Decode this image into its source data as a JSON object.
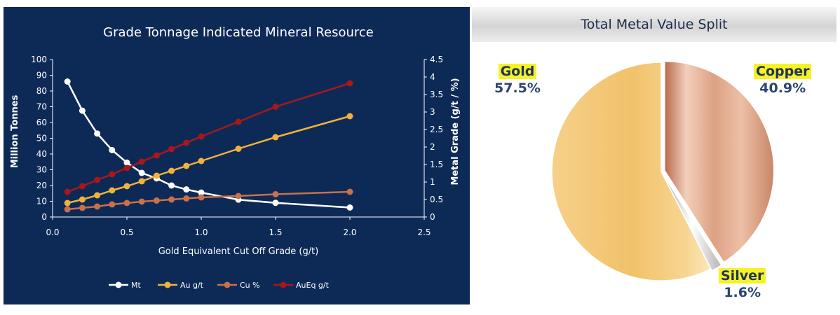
{
  "chart_data": [
    {
      "type": "line",
      "title": "Grade Tonnage Indicated Mineral Resource",
      "xlabel": "Gold Equivalent Cut Off Grade (g/t)",
      "ylabel": "Million Tonnes",
      "y2label": "Metal Grade (g/t / %)",
      "xlim": [
        0,
        2.5
      ],
      "ylim": [
        0,
        100
      ],
      "y2lim": [
        0,
        4.5
      ],
      "x_ticks": [
        "0.0",
        "0.5",
        "1.0",
        "1.5",
        "2.0",
        "2.5"
      ],
      "y_ticks": [
        "0",
        "10",
        "20",
        "30",
        "40",
        "50",
        "60",
        "70",
        "80",
        "90",
        "100"
      ],
      "y2_ticks": [
        "0",
        "0.5",
        "1",
        "1.5",
        "2",
        "2.5",
        "3",
        "3.5",
        "4",
        "4.5"
      ],
      "grid": false,
      "legend_position": "bottom",
      "x": [
        0.1,
        0.2,
        0.3,
        0.4,
        0.5,
        0.6,
        0.7,
        0.8,
        0.9,
        1.0,
        1.25,
        1.5,
        2.0
      ],
      "series": [
        {
          "name": "Mt",
          "axis": "left",
          "color": "#ffffff",
          "values": [
            86,
            67.5,
            53,
            42.5,
            34.5,
            28,
            24.5,
            20,
            17.5,
            15.5,
            11,
            9,
            6
          ]
        },
        {
          "name": "Au g/t",
          "axis": "right",
          "color": "#f0b23c",
          "values": [
            0.4,
            0.5,
            0.62,
            0.76,
            0.88,
            1.02,
            1.18,
            1.32,
            1.46,
            1.6,
            1.95,
            2.28,
            2.88
          ]
        },
        {
          "name": "Cu %",
          "axis": "right",
          "color": "#c8714a",
          "values": [
            0.22,
            0.26,
            0.3,
            0.36,
            0.4,
            0.44,
            0.47,
            0.5,
            0.53,
            0.56,
            0.6,
            0.65,
            0.72
          ]
        },
        {
          "name": "AuEq g/t",
          "axis": "right",
          "color": "#a8171b",
          "values": [
            0.72,
            0.88,
            1.06,
            1.22,
            1.4,
            1.58,
            1.76,
            1.94,
            2.12,
            2.3,
            2.72,
            3.15,
            3.82
          ]
        }
      ]
    },
    {
      "type": "pie",
      "title": "Total Metal Value Split",
      "slices": [
        {
          "name": "Gold",
          "value": 57.5,
          "label": "57.5%",
          "color": "#f2c46b"
        },
        {
          "name": "Copper",
          "value": 40.9,
          "label": "40.9%",
          "color": "#d99a7c"
        },
        {
          "name": "Silver",
          "value": 1.6,
          "label": "1.6%",
          "color": "#d8d8d8"
        }
      ]
    }
  ]
}
